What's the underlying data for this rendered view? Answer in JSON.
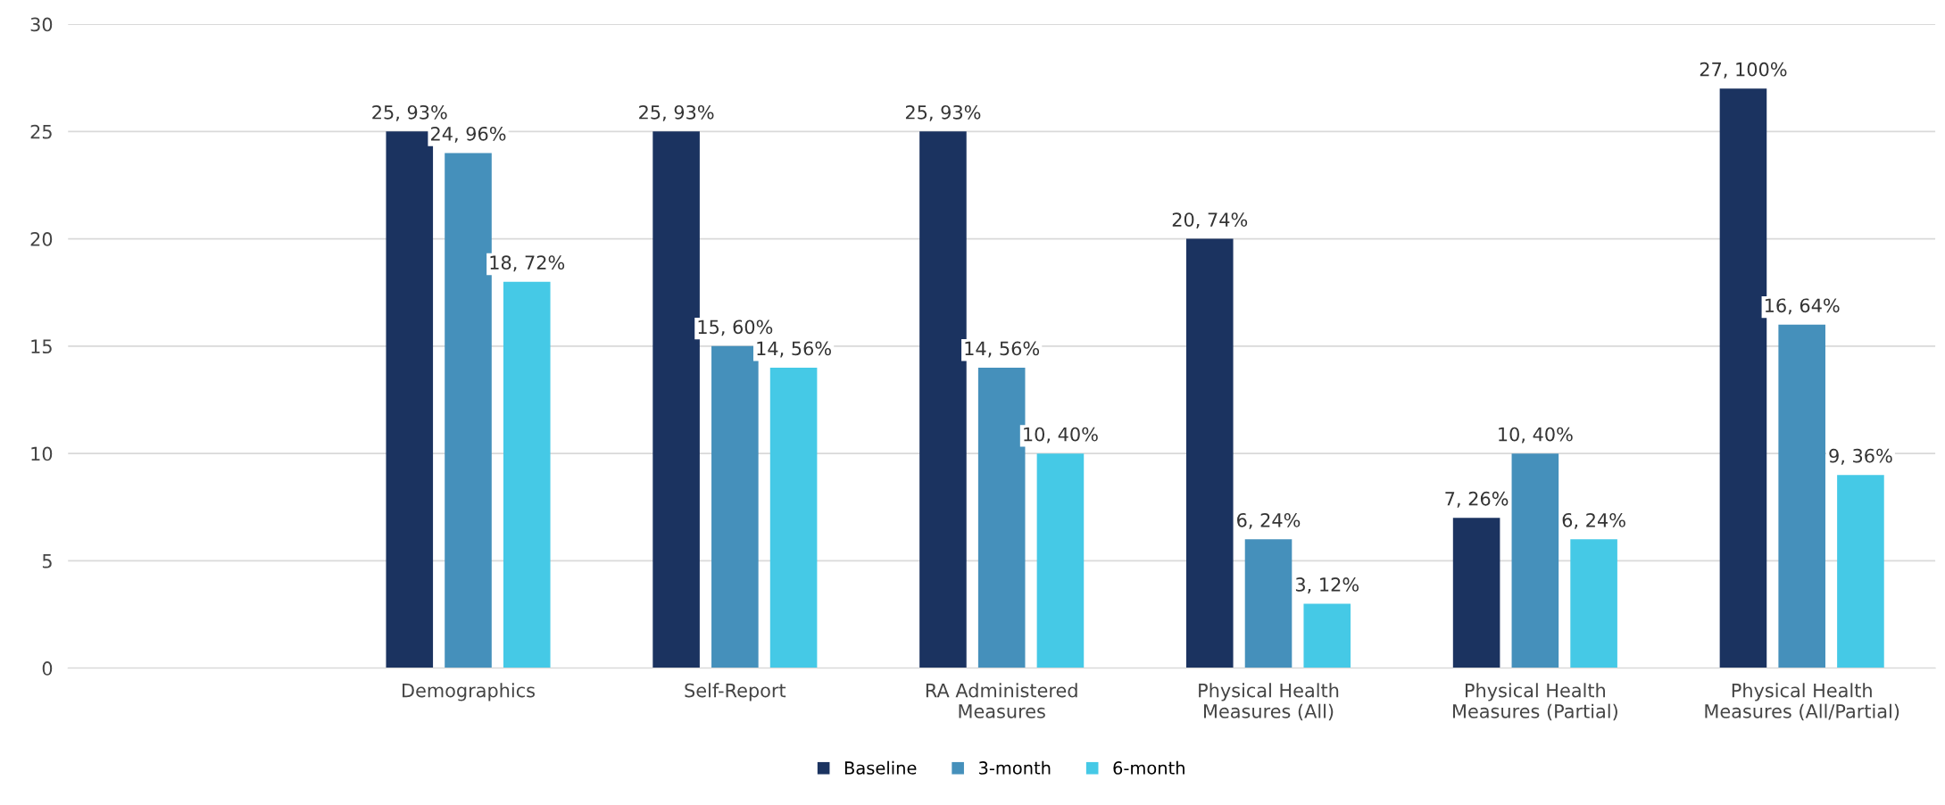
{
  "chart_data": {
    "type": "bar",
    "categories": [
      null,
      "Demographics",
      "Self-Report",
      "RA Administered\nMeasures",
      "Physical Health\nMeasures (All)",
      "Physical Health\nMeasures (Partial)",
      "Physical Health\nMeasures (All/Partial)"
    ],
    "series": [
      {
        "name": "Baseline",
        "color": "#1b3360",
        "values": [
          null,
          25,
          25,
          25,
          20,
          7,
          27
        ],
        "value_labels": [
          null,
          "25, 93%",
          "25, 93%",
          "25, 93%",
          "20, 74%",
          "7, 26%",
          "27, 100%"
        ]
      },
      {
        "name": "3-month",
        "color": "#4590bb",
        "values": [
          null,
          24,
          15,
          14,
          6,
          10,
          16
        ],
        "value_labels": [
          null,
          "24, 96%",
          "15, 60%",
          "14, 56%",
          "6, 24%",
          "10, 40%",
          "16, 64%"
        ]
      },
      {
        "name": "6-month",
        "color": "#45c9e6",
        "values": [
          null,
          18,
          14,
          10,
          3,
          6,
          9
        ],
        "value_labels": [
          null,
          "18, 72%",
          "14, 56%",
          "10, 40%",
          "3, 12%",
          "6, 24%",
          "9, 36%"
        ]
      }
    ],
    "ylim": [
      0,
      30
    ],
    "yticks": [
      0,
      5,
      10,
      15,
      20,
      25,
      30
    ],
    "grid": "y",
    "legend": "bottom"
  }
}
